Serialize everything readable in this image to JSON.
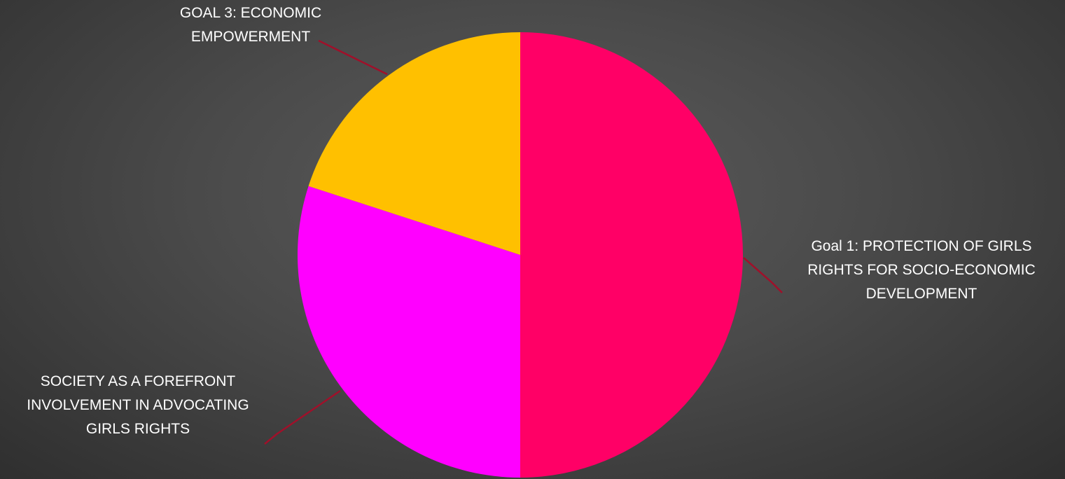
{
  "chart_data": {
    "type": "pie",
    "title": "",
    "slices": [
      {
        "label_lines": [
          "Goal 1: PROTECTION OF GIRLS",
          "RIGHTS FOR SOCIO-ECONOMIC",
          "DEVELOPMENT"
        ],
        "value": 50,
        "color": "#ff0066"
      },
      {
        "label_lines": [
          "SOCIETY AS A FOREFRONT",
          "INVOLVEMENT IN ADVOCATING",
          "GIRLS RIGHTS"
        ],
        "value": 30,
        "color": "#ff00ff"
      },
      {
        "label_lines": [
          "GOAL 3: ECONOMIC",
          "EMPOWERMENT"
        ],
        "value": 20,
        "color": "#ffc000"
      }
    ],
    "start_angle_deg": 0,
    "direction": "clockwise",
    "legend": "none",
    "leader_line_color": "#a0102a"
  }
}
